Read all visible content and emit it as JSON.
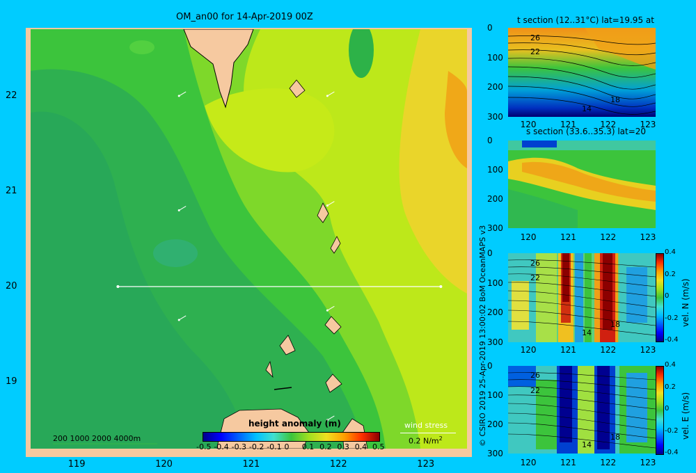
{
  "chart_data": [
    {
      "type": "heatmap",
      "title": "OM_an00 for 14-Apr-2019 00Z",
      "x_ticks": [
        "119",
        "120",
        "121",
        "122",
        "123"
      ],
      "y_ticks": [
        "22",
        "21",
        "20",
        "19"
      ],
      "xlim": [
        118.5,
        123.5
      ],
      "ylim": [
        18.3,
        22.7
      ],
      "colorbar_label": "height anomaly (m)",
      "colorbar_ticks": [
        "-0.5",
        "-0.4",
        "-0.3",
        "-0.2",
        "-0.1",
        "0",
        "0.1",
        "0.2",
        "0.3",
        "0.4",
        "0.5"
      ],
      "colorbar_range": [
        -0.5,
        0.5
      ],
      "depth_legend": "200  1000  2000  4000m",
      "wind_legend_label": "wind stress",
      "wind_legend_value": "0.2 N/m",
      "wind_legend_superscript": "2",
      "section_line": {
        "lat": 20,
        "lon_start": 119.5,
        "lon_end": 123.2
      },
      "wind_vectors": [
        {
          "lon": 120.2,
          "lat": 22.0
        },
        {
          "lon": 121.9,
          "lat": 22.0
        },
        {
          "lon": 120.2,
          "lat": 20.8
        },
        {
          "lon": 121.9,
          "lat": 20.85
        },
        {
          "lon": 120.2,
          "lat": 19.65
        },
        {
          "lon": 121.9,
          "lat": 19.75
        },
        {
          "lon": 121.9,
          "lat": 18.6
        }
      ]
    },
    {
      "type": "heatmap",
      "title": "t section (12..31°C) lat=19.95 at",
      "x_ticks": [
        "120",
        "121",
        "122",
        "123"
      ],
      "y_ticks": [
        "0",
        "100",
        "200",
        "300"
      ],
      "xlim": [
        119.5,
        123.2
      ],
      "ylim": [
        300,
        0
      ],
      "contour_labels": [
        "26",
        "22",
        "18",
        "14"
      ]
    },
    {
      "type": "heatmap",
      "title": "s section (33.6..35.3) lat=20",
      "x_ticks": [
        "120",
        "121",
        "122",
        "123"
      ],
      "y_ticks": [
        "0",
        "100",
        "200",
        "300"
      ],
      "xlim": [
        119.5,
        123.2
      ],
      "ylim": [
        300,
        0
      ]
    },
    {
      "type": "heatmap",
      "title": "",
      "x_ticks": [
        "120",
        "121",
        "122",
        "123"
      ],
      "y_ticks": [
        "0",
        "100",
        "200",
        "300"
      ],
      "xlim": [
        119.5,
        123.2
      ],
      "ylim": [
        300,
        0
      ],
      "contour_labels": [
        "26",
        "22",
        "18",
        "14"
      ],
      "colorbar_label": "vel. N (m/s)",
      "colorbar_ticks": [
        "0.4",
        "0.2",
        "0",
        "-0.2",
        "-0.4"
      ],
      "colorbar_range": [
        -0.4,
        0.4
      ]
    },
    {
      "type": "heatmap",
      "title": "",
      "x_ticks": [
        "120",
        "121",
        "122",
        "123"
      ],
      "y_ticks": [
        "0",
        "100",
        "200",
        "300"
      ],
      "xlim": [
        119.5,
        123.2
      ],
      "ylim": [
        300,
        0
      ],
      "contour_labels": [
        "26",
        "22",
        "14",
        "18"
      ],
      "colorbar_label": "vel. E (m/s)",
      "colorbar_ticks": [
        "0.4",
        "0.2",
        "0",
        "-0.2",
        "-0.4"
      ],
      "colorbar_range": [
        -0.4,
        0.4
      ]
    }
  ],
  "credit": "© CSIRO 2019   25-Apr-2019 13:00:02 BoM OceanMAPS v3"
}
